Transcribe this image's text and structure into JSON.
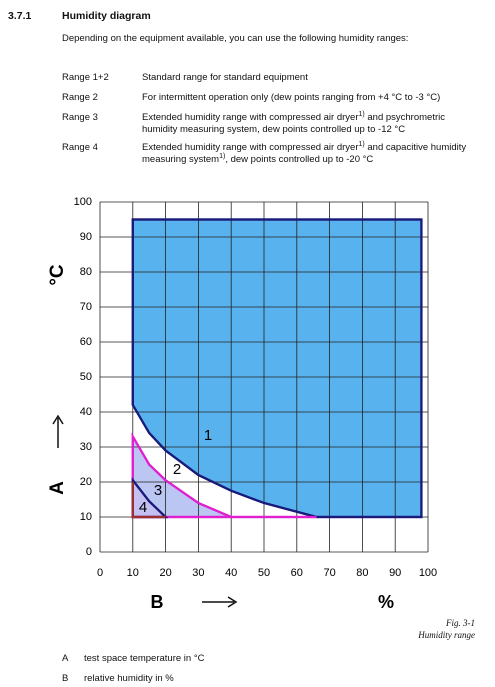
{
  "header": {
    "number": "3.7.1",
    "title": "Humidity diagram",
    "intro": "Depending on the equipment available, you can use the following humidity ranges:"
  },
  "ranges": [
    {
      "label": "Range 1+2",
      "description": [
        "Standard range for standard equipment"
      ]
    },
    {
      "label": "Range 2",
      "description": [
        "For intermittent operation only (dew points ranging from +4 °C to -3 °C)"
      ]
    },
    {
      "label": "Range 3",
      "description": [
        "Extended humidity range with compressed air dryer",
        "1)",
        " and psychrometric humidity measuring system, dew points controlled up to -12 °C"
      ]
    },
    {
      "label": "Range 4",
      "description": [
        "Extended humidity range with compressed air dryer",
        "1)",
        " and capacitive humidity measuring system",
        "1)",
        ", dew points controlled up to -20 °C"
      ]
    }
  ],
  "chart_data": {
    "type": "area",
    "y_label": "°C",
    "y_axis_letter": "A",
    "x_axis_letter": "B",
    "x_label": "%",
    "xlim": [
      0,
      100
    ],
    "xticks": [
      0,
      10,
      20,
      30,
      40,
      50,
      60,
      70,
      80,
      90,
      100
    ],
    "ylim": [
      0,
      100
    ],
    "yticks": [
      0,
      10,
      20,
      30,
      40,
      50,
      60,
      70,
      80,
      90,
      100
    ],
    "grid": true,
    "series": [
      {
        "name": "1",
        "color": "#1a1a7a",
        "fill": "#58b2ee",
        "x": [
          10,
          98,
          98,
          66,
          50,
          40,
          30,
          20,
          15,
          10
        ],
        "values": [
          95,
          95,
          10,
          10,
          14,
          17.5,
          22,
          29,
          34,
          42
        ]
      },
      {
        "name": "2",
        "color": "#e020d0",
        "fill": "#bcc6f2",
        "x": [
          66,
          40,
          30,
          20,
          15,
          10
        ],
        "values": [
          10,
          10,
          14,
          20.5,
          25,
          33
        ]
      },
      {
        "name": "3",
        "color": "#1a1a7a",
        "fill": "#c4c0f2",
        "x": [
          20,
          15,
          10
        ],
        "values": [
          10,
          14.5,
          20.5
        ]
      },
      {
        "name": "4",
        "color": "#a03030",
        "fill": null,
        "x": [
          10,
          10,
          20
        ],
        "values": [
          20,
          10,
          10
        ]
      }
    ]
  },
  "figure": {
    "number": "Fig. 3-1",
    "caption": "Humidity range"
  },
  "legend": [
    {
      "letter": "A",
      "text": "test space temperature in °C"
    },
    {
      "letter": "B",
      "text": "relative humidity in %"
    }
  ]
}
